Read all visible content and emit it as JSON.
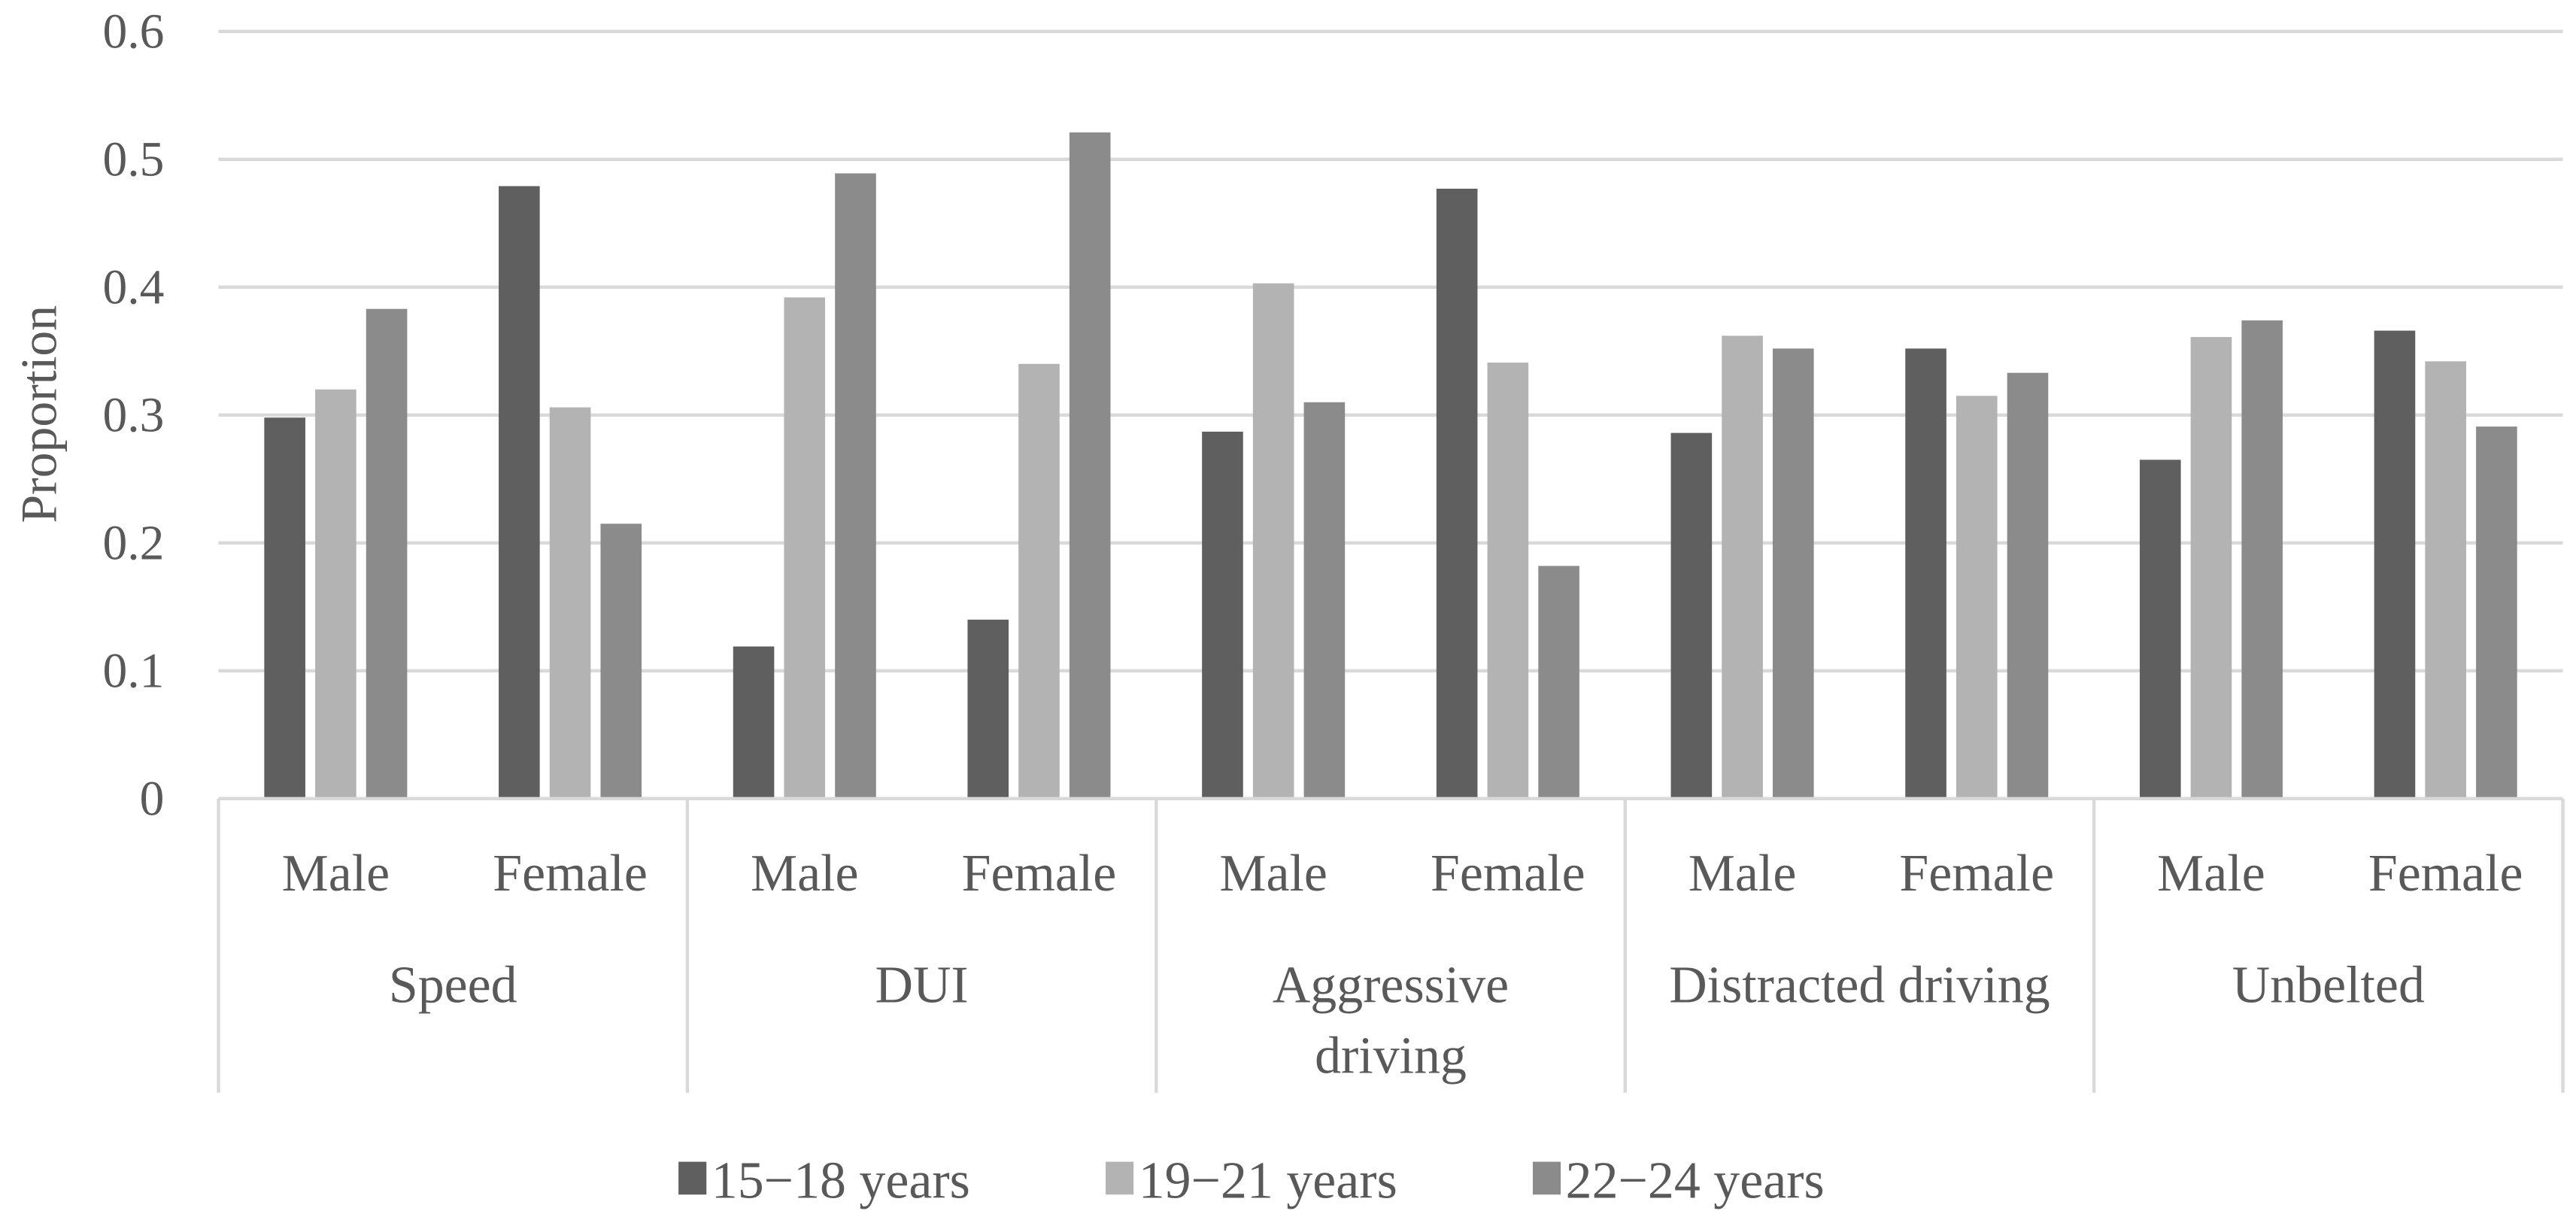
{
  "chart_data": {
    "type": "bar",
    "title": "",
    "xlabel": "",
    "ylabel": "Proportion",
    "ylim": [
      0,
      0.6
    ],
    "yticks": [
      "0",
      "0.1",
      "0.2",
      "0.3",
      "0.4",
      "0.5",
      "0.6"
    ],
    "grid": true,
    "legend_position": "bottom",
    "groups": [
      {
        "label": "Speed",
        "lines": [
          "Speed"
        ]
      },
      {
        "label": "DUI",
        "lines": [
          "DUI"
        ]
      },
      {
        "label": "Aggressive driving",
        "lines": [
          "Aggressive",
          "driving"
        ]
      },
      {
        "label": "Distracted driving",
        "lines": [
          "Distracted driving"
        ]
      },
      {
        "label": "Unbelted",
        "lines": [
          "Unbelted"
        ]
      }
    ],
    "categories": [
      "Male",
      "Female",
      "Male",
      "Female",
      "Male",
      "Female",
      "Male",
      "Female",
      "Male",
      "Female"
    ],
    "series": [
      {
        "name": "15−18 years",
        "color": "#5f5f5f",
        "values": [
          0.298,
          0.479,
          0.119,
          0.14,
          0.287,
          0.477,
          0.286,
          0.352,
          0.265,
          0.366
        ]
      },
      {
        "name": "19−21 years",
        "color": "#b3b3b3",
        "values": [
          0.32,
          0.306,
          0.392,
          0.34,
          0.403,
          0.341,
          0.362,
          0.315,
          0.361,
          0.342
        ]
      },
      {
        "name": "22−24 years",
        "color": "#8b8b8b",
        "values": [
          0.383,
          0.215,
          0.489,
          0.521,
          0.31,
          0.182,
          0.352,
          0.333,
          0.374,
          0.291
        ]
      }
    ]
  }
}
